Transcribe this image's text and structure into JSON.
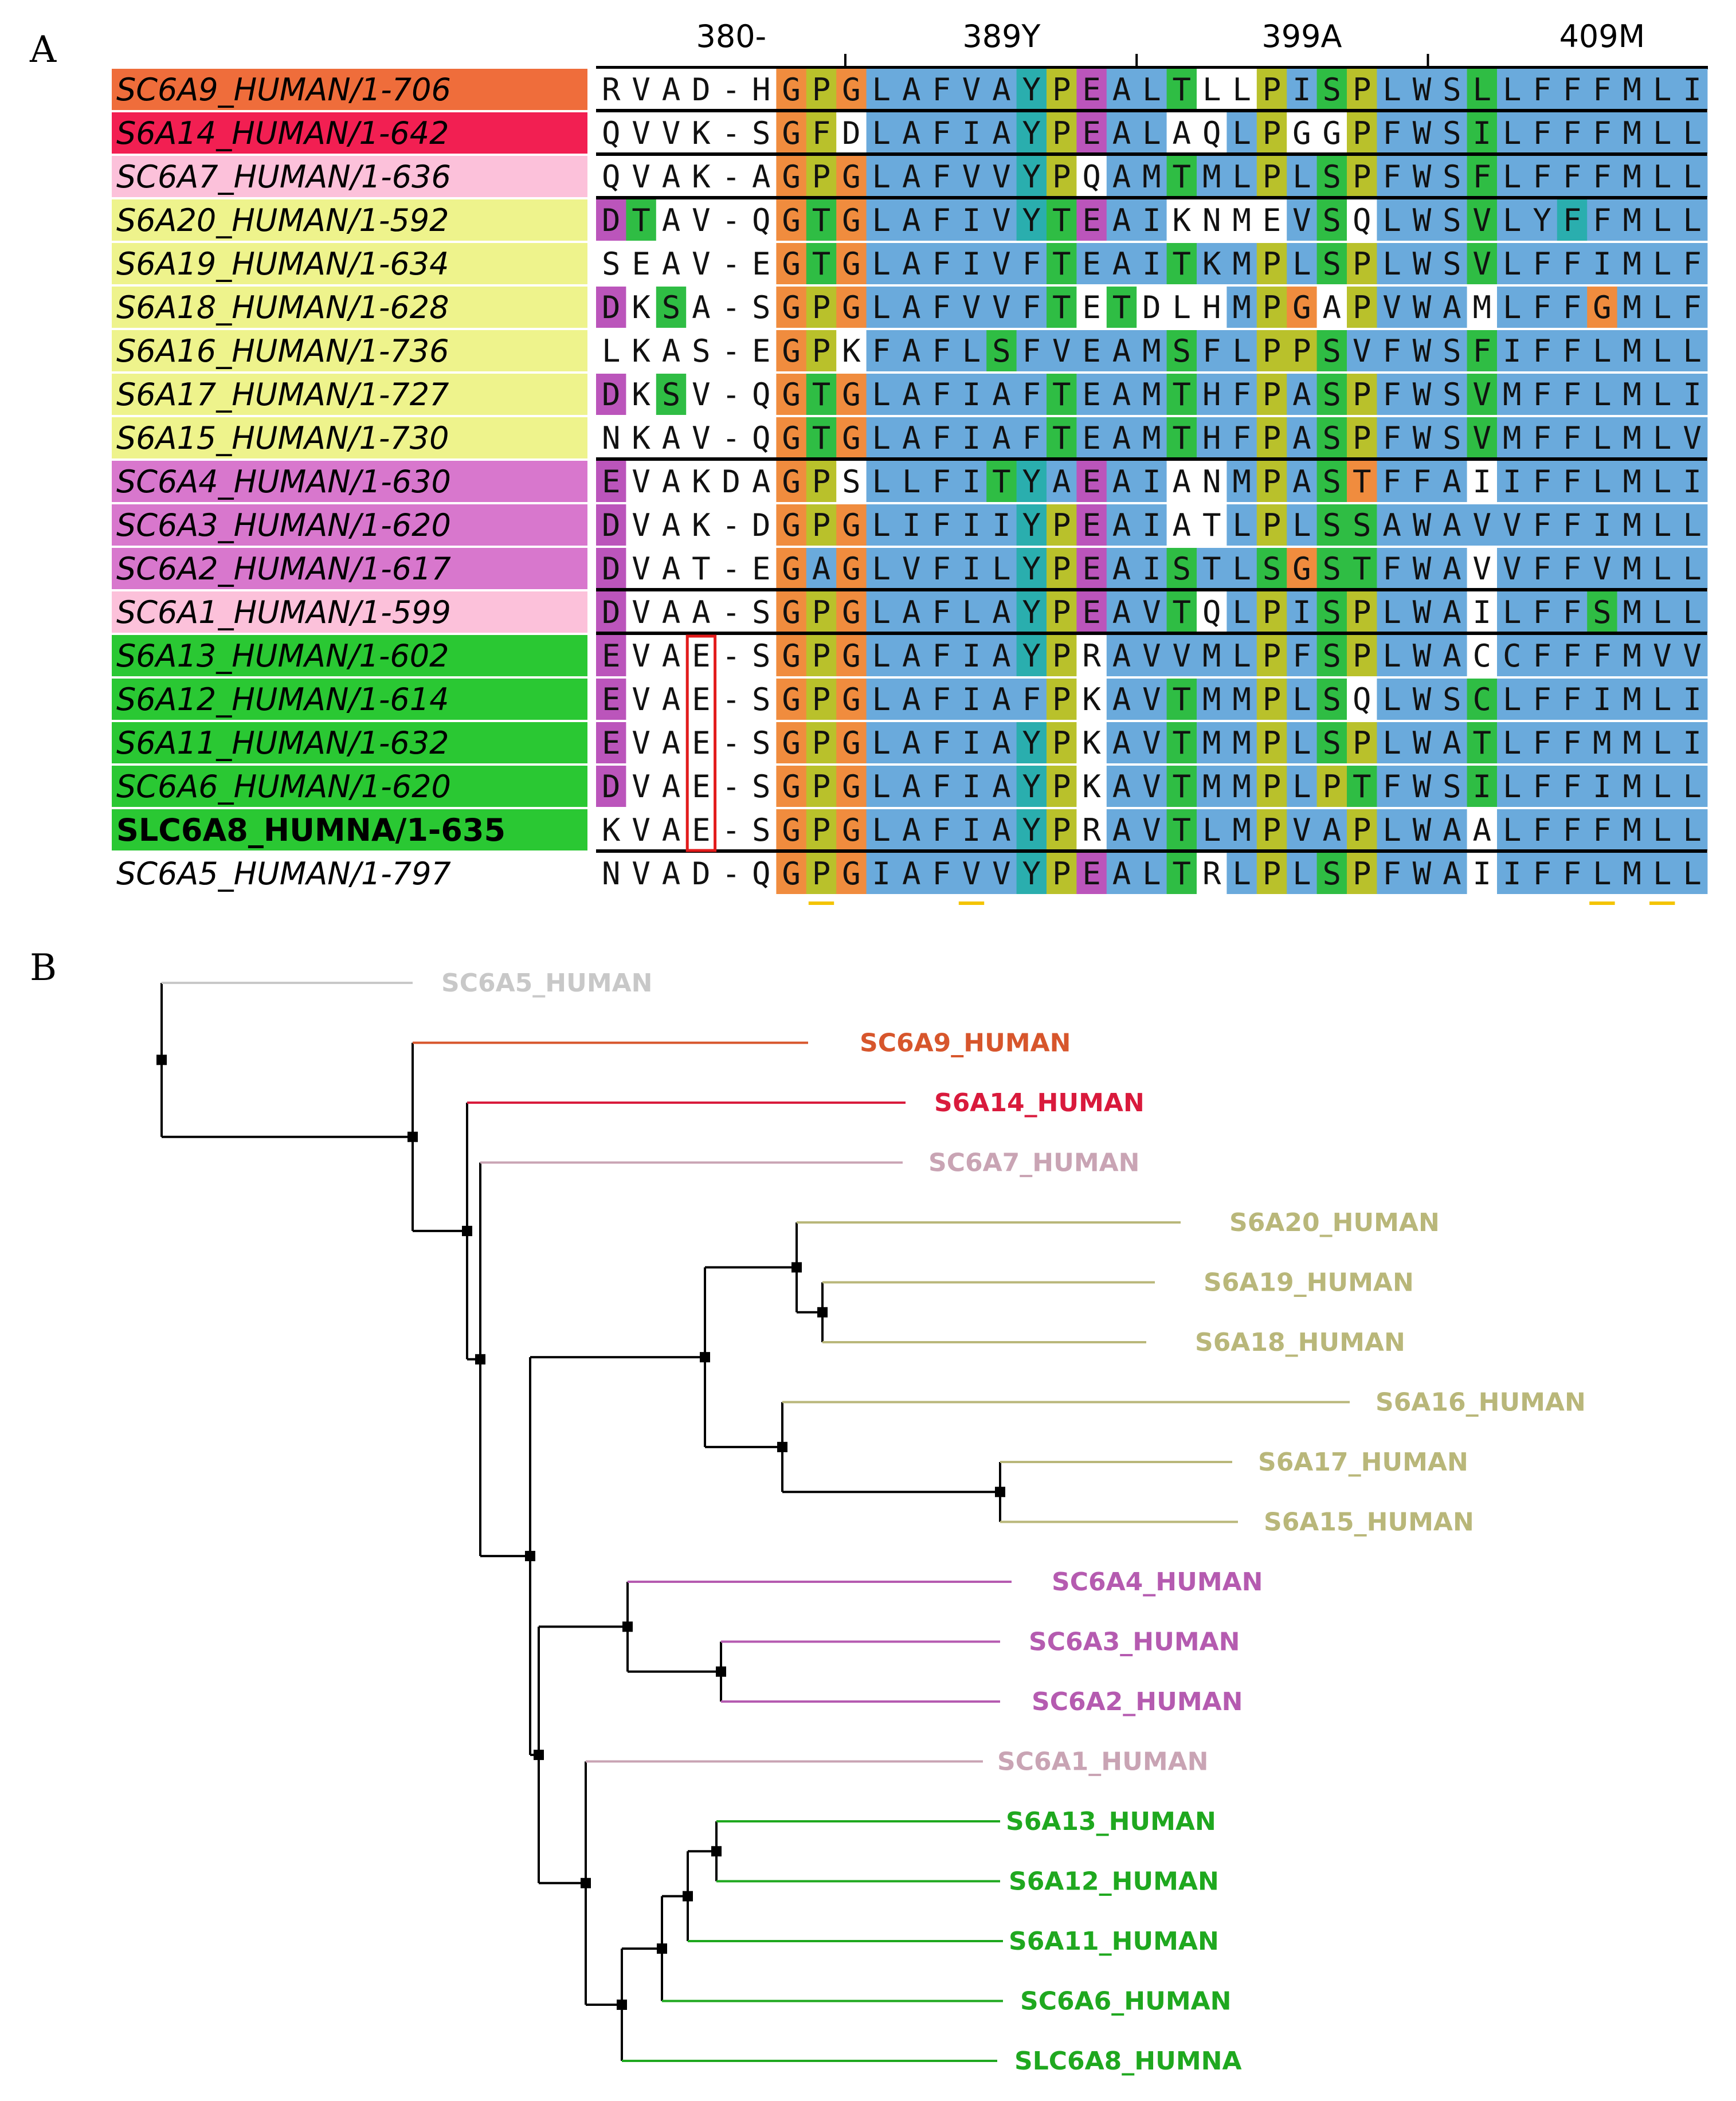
{
  "panels": {
    "a": "A",
    "b": "B"
  },
  "alignment": {
    "ruler_labels": [
      "380-",
      "389Y",
      "399A",
      "409M"
    ],
    "highlight_box_column": 3,
    "colors": {
      "hydrophobic": "#6aaadc",
      "gly": "#f08c3e",
      "pro": "#b9c12b",
      "polar": "#2fbd44",
      "acid": "#bb55bb",
      "aromatic": "#2aaeae",
      "none": "#ffffff",
      "box": "#e21b1b",
      "underline": "#f4c400"
    },
    "rows": [
      {
        "name": "SC6A9_HUMAN/1-706",
        "label_color": "#ef6d3b",
        "style": "italic",
        "seq": "RVAD-HGPGLAFVAYPEALTLLPISPLWSLLFFFMLI",
        "colors": "nnnnnngpgbbbbbtpabbcnnpbcpbbbcbbbbbbb",
        "sep_after": true
      },
      {
        "name": "S6A14_HUMAN/1-642",
        "label_color": "#f21f52",
        "style": "italic",
        "seq": "QVVK-SGFDLAFIAYPEALAQLPGGPFWSILFFFMLL",
        "colors": "nnnnnngpnbbbbbtpabbnnbpnnpbbbcbbbbbbb",
        "sep_after": true
      },
      {
        "name": "SC6A7_HUMAN/1-636",
        "label_color": "#fcc1da",
        "style": "italic",
        "seq": "QVAK-AGPGLAFVVYPQAMTMLPLSPFWSFLFFFMLL",
        "colors": "nnnnnngpgbbbbbtpnbbcbbpbcpbbbcbbbbbbb",
        "sep_after": true
      },
      {
        "name": "S6A20_HUMAN/1-592",
        "label_color": "#eef38c",
        "style": "italic",
        "seq": "DTAV-QGTGLAFIVYTEAIKNMEVSQLWSVLYFFMLL",
        "colors": "acnnnngcgbbbbbtcabbnnnnbcnbbbcbbtbbbb",
        "sep_after": false
      },
      {
        "name": "S6A19_HUMAN/1-634",
        "label_color": "#eef38c",
        "style": "italic",
        "seq": "SEAV-EGTGLAFIVFTEAITKMPLSPLWSVLFFIMLF",
        "colors": "nnnnnngcgbbbbbbcbbbcbbpbcpbbbcbbbbbbb",
        "sep_after": false
      },
      {
        "name": "S6A18_HUMAN/1-628",
        "label_color": "#eef38c",
        "style": "italic",
        "seq": "DKSA-SGPGLAFVVFTETDLHMPGAPVWAMLFFGMLF",
        "colors": "ancnnngpgbbbbbbcncnnnbpgnpbbbnbbbgbbb",
        "sep_after": false
      },
      {
        "name": "S6A16_HUMAN/1-736",
        "label_color": "#eef38c",
        "style": "italic",
        "seq": "LKAS-EGPKFAFLSFVEAMSFLPPSVFWSFIFFLMLL",
        "colors": "nnnnnngpnbbbbcbbbbbcbbppcbbbbcbbbbbbb",
        "sep_after": false
      },
      {
        "name": "S6A17_HUMAN/1-727",
        "label_color": "#eef38c",
        "style": "italic",
        "seq": "DKSV-QGTGLAFIAFTEAMTHFPASPFWSVMFFLMLI",
        "colors": "ancnnngcgbbbbbbcbbbcbbpbcpbbbcbbbbbbb",
        "sep_after": false
      },
      {
        "name": "S6A15_HUMAN/1-730",
        "label_color": "#eef38c",
        "style": "italic",
        "seq": "NKAV-QGTGLAFIAFTEAMTHFPASPFWSVMFFLMLV",
        "colors": "nnnnnngcgbbbbbbcbbbcbbpbcpbbbcbbbbbbb",
        "sep_after": true
      },
      {
        "name": "SC6A4_HUMAN/1-630",
        "label_color": "#d877cd",
        "style": "italic",
        "seq": "EVAKDAGPSLLFITYAEAIANMPASTFFAIIFFLMLI",
        "colors": "annnnngpnbbbbctbabbnnbpbcgbbbnbbbbbbb",
        "sep_after": false
      },
      {
        "name": "SC6A3_HUMAN/1-620",
        "label_color": "#d877cd",
        "style": "italic",
        "seq": "DVAK-DGPGLIFIIYPEAIATLPLSSAWAVVFFIMLL",
        "colors": "annnnngpgbbbbbtpabbnnbpbccbbbbbbbbbbb",
        "sep_after": false
      },
      {
        "name": "SC6A2_HUMAN/1-617",
        "label_color": "#d877cd",
        "style": "italic",
        "seq": "DVAT-EGAGLVFILYPEAISTLSGSTFWAVVFFVMLL",
        "colors": "annnnngbgbbbbbtpabbcbbcgccbbbnbbbbbbb",
        "sep_after": true
      },
      {
        "name": "SC6A1_HUMAN/1-599",
        "label_color": "#fcc1da",
        "style": "italic",
        "seq": "DVAA-SGPGLAFLAYPEAVTQLPISPLWAILFFSMLL",
        "colors": "annnnngpgbbbbbtpabbcnbpbcpbbbnbbbcbbb",
        "sep_after": true
      },
      {
        "name": "S6A13_HUMAN/1-602",
        "label_color": "#2ac833",
        "style": "italic",
        "seq": "EVAE-SGPGLAFIAYPRAVVMLPFSPLWACCFFFMVV",
        "colors": "annnnngpgbbbbbtpnbbbbbpbcpbbbnbbbbbbb",
        "sep_after": false
      },
      {
        "name": "S6A12_HUMAN/1-614",
        "label_color": "#2ac833",
        "style": "italic",
        "seq": "EVAE-SGPGLAFIAFPKAVTMMPLSQLWSCLFFIMLI",
        "colors": "annnnngpgbbbbbbpnbbcbbpbcnbbbcbbbbbbb",
        "sep_after": false
      },
      {
        "name": "S6A11_HUMAN/1-632",
        "label_color": "#2ac833",
        "style": "italic",
        "seq": "EVAE-SGPGLAFIAYPKAVTMMPLSPLWATLFFMMLI",
        "colors": "annnnngpgbbbbbtpnbbcbbpbcpbbbcbbbbbbb",
        "sep_after": false
      },
      {
        "name": "SC6A6_HUMAN/1-620",
        "label_color": "#2ac833",
        "style": "italic",
        "seq": "DVAE-SGPGLAFIAYPKAVTMMPLPTFWSILFFIMLL",
        "colors": "annnnngpgbbbbbtpnbbcbbpbpcbbbcbbbbbbb",
        "sep_after": false
      },
      {
        "name": "SLC6A8_HUMNA/1-635",
        "label_color": "#2ac833",
        "style": "bold",
        "seq": "KVAE-SGPGLAFIAYPRAVTLMPVAPLWAALFFFMLL",
        "colors": "nnnnnngpgbbbbbtpnbbcbbpbbpbbbnbbbbbbb",
        "sep_after": true
      },
      {
        "name": "SC6A5_HUMAN/1-797",
        "label_color": "#ffffff",
        "style": "plain",
        "seq": "NVAD-QGPGIAFVVYPEALTRLPLSPFWAIIFFLMLL",
        "colors": "nnnnnngpgbbbbbtpabbcnbpbcpbbbnbbbbbbb",
        "sep_after": false
      }
    ],
    "underline_columns": [
      7,
      12,
      33,
      35
    ]
  },
  "tree": {
    "leaves": [
      {
        "label": "SC6A5_HUMAN",
        "color": "#c8c8c8"
      },
      {
        "label": "SC6A9_HUMAN",
        "color": "#d7562c"
      },
      {
        "label": "S6A14_HUMAN",
        "color": "#d91a3c"
      },
      {
        "label": "SC6A7_HUMAN",
        "color": "#c9a4b4"
      },
      {
        "label": "S6A20_HUMAN",
        "color": "#b9b77a"
      },
      {
        "label": "S6A19_HUMAN",
        "color": "#b9b77a"
      },
      {
        "label": "S6A18_HUMAN",
        "color": "#b9b77a"
      },
      {
        "label": "S6A16_HUMAN",
        "color": "#b9b77a"
      },
      {
        "label": "S6A17_HUMAN",
        "color": "#b9b77a"
      },
      {
        "label": "S6A15_HUMAN",
        "color": "#b9b77a"
      },
      {
        "label": "SC6A4_HUMAN",
        "color": "#b55bb0"
      },
      {
        "label": "SC6A3_HUMAN",
        "color": "#b55bb0"
      },
      {
        "label": "SC6A2_HUMAN",
        "color": "#b55bb0"
      },
      {
        "label": "SC6A1_HUMAN",
        "color": "#c9a4b4"
      },
      {
        "label": "S6A13_HUMAN",
        "color": "#1fa81f"
      },
      {
        "label": "S6A12_HUMAN",
        "color": "#1fa81f"
      },
      {
        "label": "S6A11_HUMAN",
        "color": "#1fa81f"
      },
      {
        "label": "SC6A6_HUMAN",
        "color": "#1fa81f"
      },
      {
        "label": "SLC6A8_HUMNA",
        "color": "#1fa81f"
      }
    ]
  }
}
